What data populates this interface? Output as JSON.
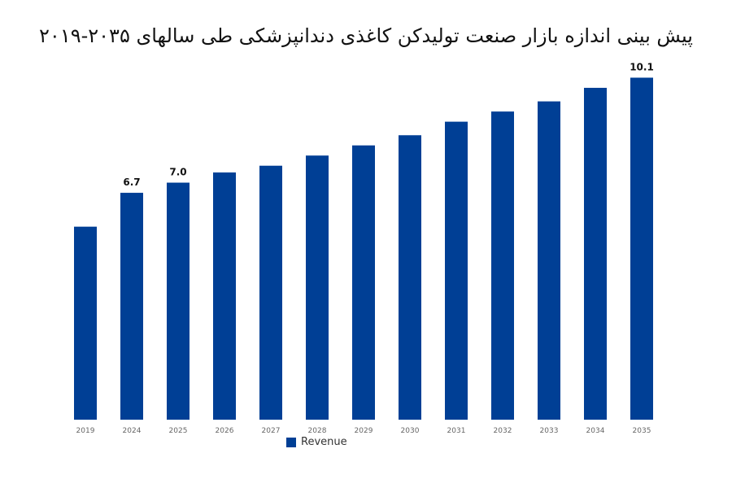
{
  "chart_data": {
    "type": "bar",
    "title": "پیش بینی اندازه بازار صنعت تولیدکن کاغذی دندانپزشکی طی سالهای ۲۰۳۵-۲۰۱۹",
    "categories": [
      "2019",
      "2024",
      "2025",
      "2026",
      "2027",
      "2028",
      "2029",
      "2030",
      "2031",
      "2032",
      "2033",
      "2034",
      "2035"
    ],
    "series": [
      {
        "name": "Revenue",
        "values": [
          5.7,
          6.7,
          7.0,
          7.3,
          7.5,
          7.8,
          8.1,
          8.4,
          8.8,
          9.1,
          9.4,
          9.8,
          10.1
        ],
        "data_labels": [
          "",
          "6.7",
          "7.0",
          "",
          "",
          "",
          "",
          "",
          "",
          "",
          "",
          "",
          "10.1"
        ]
      }
    ],
    "ylim": [
      0,
      10.4
    ],
    "grid": false,
    "legend": "bottom-center"
  },
  "colors": {
    "bar": "#003f95"
  }
}
